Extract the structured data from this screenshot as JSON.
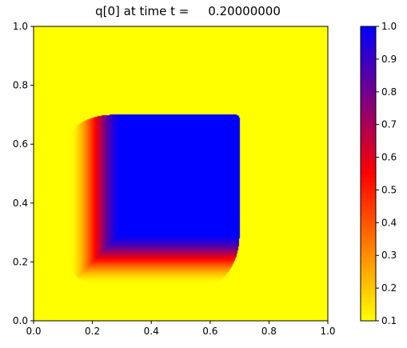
{
  "chart_data": {
    "type": "heatmap",
    "title": "q[0] at time t =     0.20000000",
    "xlabel": "",
    "ylabel": "",
    "xlim": [
      0.0,
      1.0
    ],
    "ylim": [
      0.0,
      1.0
    ],
    "x_ticks": [
      "0.0",
      "0.2",
      "0.4",
      "0.6",
      "0.8",
      "1.0"
    ],
    "y_ticks": [
      "0.0",
      "0.2",
      "0.4",
      "0.6",
      "0.8",
      "1.0"
    ],
    "grid": false,
    "colormap": {
      "name": "yellow_red_blue",
      "stops": [
        {
          "value": 0.1,
          "color": "#ffff00"
        },
        {
          "value": 0.55,
          "color": "#ff0000"
        },
        {
          "value": 1.0,
          "color": "#0000ff"
        }
      ]
    },
    "colorbar": {
      "range": [
        0.1,
        1.0
      ],
      "ticks": [
        "0.1",
        "0.2",
        "0.3",
        "0.4",
        "0.5",
        "0.6",
        "0.7",
        "0.8",
        "0.9",
        "1.0"
      ],
      "placement": "right"
    },
    "field": {
      "background": 0.1,
      "core_value": 1.0,
      "core_region": {
        "x": [
          0.3,
          0.7
        ],
        "y": [
          0.3,
          0.7
        ]
      },
      "transition_region": {
        "x": [
          0.12,
          0.7
        ],
        "y": [
          0.12,
          0.7
        ]
      }
    }
  }
}
